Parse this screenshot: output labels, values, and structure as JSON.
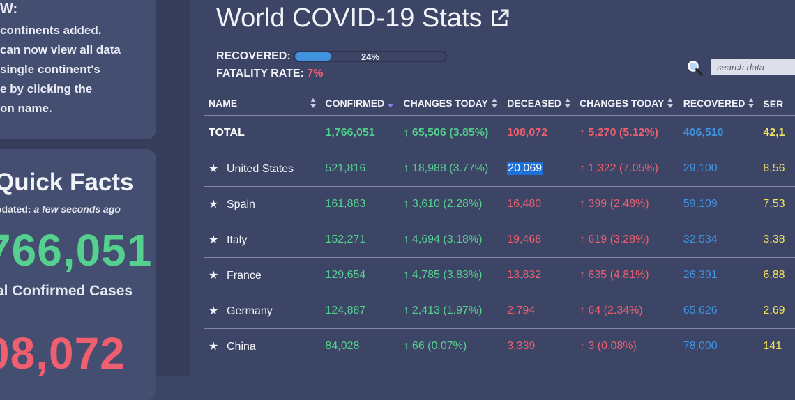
{
  "sidebar": {
    "new_heading": "W:",
    "new_text": "continents added.\ncan now view all data\nsingle continent's\ne by clicking the\non name.",
    "facts_title": "Quick Facts",
    "updated_label": "odated: ",
    "updated_value": "a few seconds ago",
    "confirmed_value": "766,051",
    "confirmed_label": "al Confirmed Cases",
    "deceased_value": "08,072"
  },
  "header": {
    "title": "World COVID-19 Stats",
    "recovered_label": "RECOVERED:",
    "recovered_percent": "24%",
    "recovered_fraction": 0.24,
    "fatality_label": "FATALITY RATE:",
    "fatality_value": "7%"
  },
  "search": {
    "placeholder": "search data"
  },
  "table": {
    "columns": [
      "NAME",
      "CONFIRMED",
      "CHANGES TODAY",
      "DECEASED",
      "CHANGES TODAY",
      "RECOVERED",
      "SER"
    ],
    "total": {
      "name": "TOTAL",
      "confirmed": "1,766,051",
      "change_confirmed": "↑ 65,506 (3.85%)",
      "deceased": "108,072",
      "change_deceased": "↑ 5,270 (5.12%)",
      "recovered": "406,510",
      "serious": "42,1"
    },
    "rows": [
      {
        "name": "United States",
        "confirmed": "521,816",
        "change_confirmed": "↑ 18,988 (3.77%)",
        "deceased": "20,069",
        "change_deceased": "↑ 1,322 (7.05%)",
        "recovered": "29,100",
        "serious": "8,56"
      },
      {
        "name": "Spain",
        "confirmed": "161,883",
        "change_confirmed": "↑ 3,610 (2.28%)",
        "deceased": "16,480",
        "change_deceased": "↑ 399 (2.48%)",
        "recovered": "59,109",
        "serious": "7,53"
      },
      {
        "name": "Italy",
        "confirmed": "152,271",
        "change_confirmed": "↑ 4,694 (3.18%)",
        "deceased": "19,468",
        "change_deceased": "↑ 619 (3.28%)",
        "recovered": "32,534",
        "serious": "3,38"
      },
      {
        "name": "France",
        "confirmed": "129,654",
        "change_confirmed": "↑ 4,785 (3.83%)",
        "deceased": "13,832",
        "change_deceased": "↑ 635 (4.81%)",
        "recovered": "26,391",
        "serious": "6,88"
      },
      {
        "name": "Germany",
        "confirmed": "124,887",
        "change_confirmed": "↑ 2,413 (1.97%)",
        "deceased": "2,794",
        "change_deceased": "↑ 64 (2.34%)",
        "recovered": "65,626",
        "serious": "2,69"
      },
      {
        "name": "China",
        "confirmed": "84,028",
        "change_confirmed": "↑ 66 (0.07%)",
        "deceased": "3,339",
        "change_deceased": "↑ 3 (0.08%)",
        "recovered": "78,000",
        "serious": "141"
      }
    ],
    "star_glyph": "★"
  },
  "colors": {
    "background": "#3c4565",
    "green": "#55d08f",
    "red": "#ef5f6f",
    "blue": "#3f93df",
    "yellow": "#f1e25a"
  }
}
